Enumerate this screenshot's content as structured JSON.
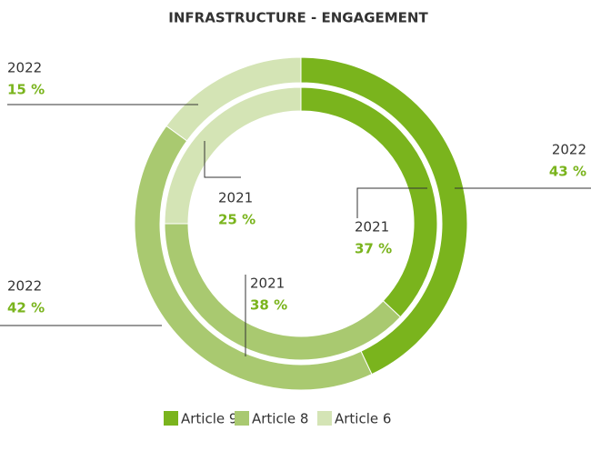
{
  "chart_data": {
    "type": "donut",
    "title": "INFRASTRUCTURE - ENGAGEMENT",
    "categories": [
      "Article 9",
      "Article 8",
      "Article 6"
    ],
    "colors": [
      "#7ab41d",
      "#a9c970",
      "#d4e4b5"
    ],
    "series": [
      {
        "name": "2022",
        "values": [
          43,
          42,
          15
        ],
        "value_labels": [
          "43 %",
          "42 %",
          "15 %"
        ]
      },
      {
        "name": "2021",
        "values": [
          37,
          38,
          25
        ],
        "value_labels": [
          "37 %",
          "38 %",
          "25 %"
        ]
      }
    ]
  }
}
